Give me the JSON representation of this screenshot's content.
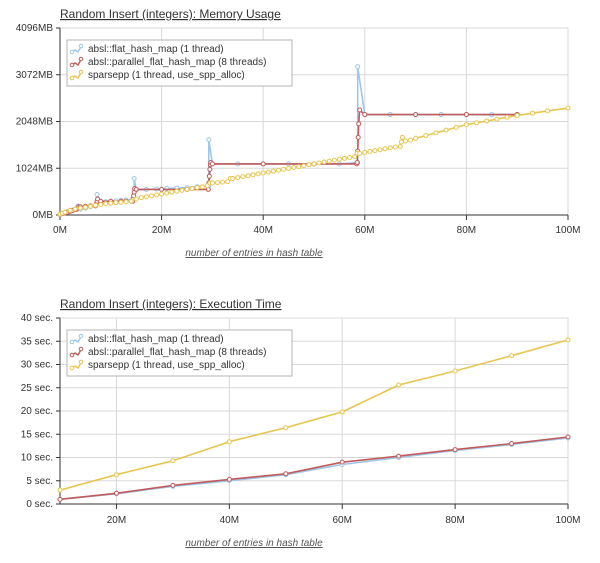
{
  "colors": {
    "flat": "#9cc8ea",
    "parallel": "#c25a5a",
    "sparsepp": "#e8c54f",
    "grid": "#d8d8d8",
    "axis": "#333333"
  },
  "chart_data": [
    {
      "type": "line",
      "title": "Random Insert (integers): Memory Usage",
      "xlabel": "number of entries in hash table",
      "ylabel": "",
      "xlim": [
        0,
        100
      ],
      "ylim": [
        0,
        4096
      ],
      "x_ticks": [
        0,
        20,
        40,
        60,
        80,
        100
      ],
      "x_tick_labels": [
        "0M",
        "20M",
        "40M",
        "60M",
        "80M",
        "100M"
      ],
      "y_ticks": [
        0,
        1024,
        2048,
        3072,
        4096
      ],
      "y_tick_labels": [
        "0MB",
        "1024MB",
        "2048MB",
        "3072MB",
        "4096MB"
      ],
      "legend": [
        "absl::flat_hash_map (1 thread)",
        "absl::parallel_flat_hash_map (8 threads)",
        "sparsepp (1 thread, use_spp_alloc)"
      ],
      "series": [
        {
          "name": "absl::flat_hash_map (1 thread)",
          "color_key": "flat",
          "x": [
            0,
            0.5,
            1,
            1.5,
            2,
            2.5,
            3,
            3.5,
            3.5,
            4,
            5,
            6,
            7,
            7.3,
            7.3,
            8,
            9,
            10,
            11,
            12,
            13,
            14.6,
            14.6,
            15,
            17,
            19,
            21,
            23,
            25,
            27,
            29.3,
            29.3,
            30,
            35,
            40,
            45,
            50,
            55,
            58.6,
            58.6,
            60,
            65,
            70,
            75,
            80,
            85,
            90
          ],
          "y": [
            10,
            30,
            50,
            70,
            90,
            110,
            130,
            150,
            200,
            130,
            150,
            180,
            200,
            250,
            450,
            280,
            290,
            300,
            310,
            320,
            330,
            350,
            800,
            550,
            560,
            570,
            580,
            590,
            600,
            620,
            640,
            1650,
            1120,
            1120,
            1120,
            1120,
            1120,
            1120,
            1150,
            3250,
            2200,
            2200,
            2200,
            2200,
            2200,
            2200,
            2200
          ]
        },
        {
          "name": "absl::parallel_flat_hash_map (8 threads)",
          "color_key": "parallel",
          "x": [
            0,
            0.5,
            1,
            1.5,
            2,
            2.5,
            3,
            3.2,
            3.4,
            3.6,
            3.7,
            4,
            5,
            6,
            7,
            7.2,
            7.3,
            7.4,
            8,
            10,
            12,
            13,
            14.3,
            14.4,
            14.5,
            14.6,
            14.7,
            15,
            20,
            25,
            29.2,
            29.3,
            29.4,
            29.5,
            29.6,
            29.7,
            30,
            40,
            50,
            58.4,
            58.5,
            58.6,
            58.7,
            58.8,
            59,
            60,
            70,
            80,
            90
          ],
          "y": [
            15,
            30,
            45,
            60,
            80,
            100,
            120,
            120,
            140,
            160,
            180,
            180,
            190,
            200,
            200,
            250,
            300,
            350,
            300,
            300,
            300,
            300,
            300,
            360,
            420,
            500,
            580,
            560,
            560,
            560,
            560,
            700,
            850,
            1000,
            1100,
            1150,
            1120,
            1120,
            1120,
            1120,
            1150,
            1400,
            1700,
            2000,
            2300,
            2200,
            2200,
            2200,
            2200
          ]
        },
        {
          "name": "sparsepp (1 thread, use_spp_alloc)",
          "color_key": "sparsepp",
          "x": [
            0,
            0.5,
            1,
            2,
            3,
            4,
            5,
            6,
            7,
            8,
            9,
            10,
            11,
            12,
            13,
            14,
            15,
            16,
            17,
            18,
            19,
            20,
            21,
            22,
            23,
            24,
            25,
            26,
            27,
            28,
            29,
            29.5,
            30,
            31,
            32,
            33,
            33.5,
            34,
            35,
            36,
            37,
            38,
            39,
            40,
            41,
            42,
            43,
            44,
            45,
            46,
            47,
            48,
            49,
            50,
            51,
            52,
            53,
            54,
            55,
            56,
            57,
            58,
            58.5,
            59,
            60,
            61,
            62,
            63,
            64,
            65,
            66,
            67,
            67.2,
            67.4,
            68,
            69,
            70,
            72,
            74,
            76,
            78,
            80,
            82,
            84,
            86,
            88,
            90,
            93,
            96,
            100
          ],
          "y": [
            20,
            40,
            60,
            100,
            130,
            150,
            170,
            190,
            210,
            230,
            250,
            260,
            270,
            280,
            290,
            300,
            350,
            380,
            400,
            420,
            440,
            460,
            480,
            500,
            520,
            540,
            560,
            580,
            600,
            620,
            640,
            700,
            700,
            710,
            720,
            730,
            800,
            800,
            820,
            840,
            860,
            880,
            900,
            920,
            940,
            960,
            980,
            1000,
            1020,
            1040,
            1060,
            1080,
            1100,
            1120,
            1140,
            1160,
            1180,
            1200,
            1220,
            1240,
            1260,
            1280,
            1350,
            1350,
            1370,
            1390,
            1410,
            1430,
            1450,
            1470,
            1490,
            1500,
            1600,
            1700,
            1620,
            1640,
            1680,
            1740,
            1800,
            1860,
            1920,
            1980,
            2020,
            2060,
            2100,
            2140,
            2180,
            2230,
            2280,
            2340
          ]
        }
      ]
    },
    {
      "type": "line",
      "title": "Random Insert (integers): Execution Time",
      "xlabel": "number of entries in hash table",
      "ylabel": "",
      "xlim": [
        10,
        100
      ],
      "ylim": [
        0,
        40
      ],
      "x_ticks": [
        20,
        40,
        60,
        80,
        100
      ],
      "x_tick_labels": [
        "20M",
        "40M",
        "60M",
        "80M",
        "100M"
      ],
      "y_ticks": [
        0,
        5,
        10,
        15,
        20,
        25,
        30,
        35,
        40
      ],
      "y_tick_labels": [
        "0 sec.",
        "5 sec.",
        "10 sec.",
        "15 sec.",
        "20 sec.",
        "25 sec.",
        "30 sec.",
        "35 sec.",
        "40 sec."
      ],
      "legend": [
        "absl::flat_hash_map (1 thread)",
        "absl::parallel_flat_hash_map (8 threads)",
        "sparsepp (1 thread, use_spp_alloc)"
      ],
      "series": [
        {
          "name": "absl::flat_hash_map (1 thread)",
          "color_key": "flat",
          "x": [
            10,
            20,
            30,
            40,
            50,
            60,
            70,
            80,
            90,
            100
          ],
          "y": [
            1.0,
            2.2,
            3.8,
            5.0,
            6.3,
            8.5,
            10.0,
            11.5,
            12.8,
            14.2
          ]
        },
        {
          "name": "absl::parallel_flat_hash_map (8 threads)",
          "color_key": "parallel",
          "x": [
            10,
            20,
            30,
            40,
            50,
            60,
            70,
            80,
            90,
            100
          ],
          "y": [
            1.0,
            2.3,
            4.0,
            5.3,
            6.5,
            9.0,
            10.3,
            11.7,
            13.0,
            14.4
          ]
        },
        {
          "name": "sparsepp (1 thread, use_spp_alloc)",
          "color_key": "sparsepp",
          "x": [
            10,
            20,
            30,
            40,
            50,
            60,
            70,
            80,
            90,
            100
          ],
          "y": [
            3.0,
            6.3,
            9.3,
            13.4,
            16.4,
            19.8,
            25.6,
            28.6,
            31.9,
            35.3
          ]
        }
      ]
    }
  ]
}
